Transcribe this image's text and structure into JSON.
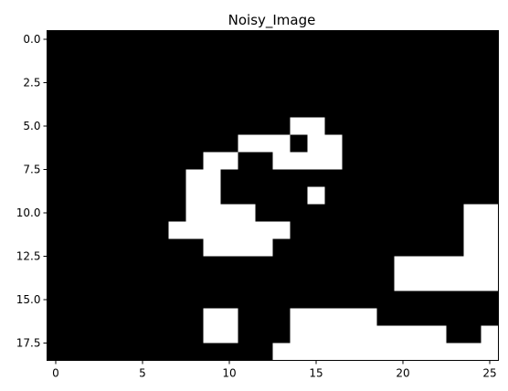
{
  "chart_data": {
    "type": "heatmap",
    "title": "Noisy_Image",
    "xlabel": "",
    "ylabel": "",
    "colormap": "gray",
    "colors": {
      "zero": "#000000",
      "one": "#ffffff"
    },
    "xlim": [
      -0.5,
      25.5
    ],
    "ylim": [
      18.5,
      -0.5
    ],
    "xticks": [
      0,
      5,
      10,
      15,
      20,
      25
    ],
    "yticks": [
      0.0,
      2.5,
      5.0,
      7.5,
      10.0,
      12.5,
      15.0,
      17.5
    ],
    "xtick_labels": [
      "0",
      "5",
      "10",
      "15",
      "20",
      "25"
    ],
    "ytick_labels": [
      "0.0",
      "2.5",
      "5.0",
      "7.5",
      "10.0",
      "12.5",
      "15.0",
      "17.5"
    ],
    "grid": false,
    "rows": 19,
    "cols": 26,
    "matrix": [
      [
        0,
        0,
        0,
        0,
        0,
        0,
        0,
        0,
        0,
        0,
        0,
        0,
        0,
        0,
        0,
        0,
        0,
        0,
        0,
        0,
        0,
        0,
        0,
        0,
        0,
        0
      ],
      [
        0,
        0,
        0,
        0,
        0,
        0,
        0,
        0,
        0,
        0,
        0,
        0,
        0,
        0,
        0,
        0,
        0,
        0,
        0,
        0,
        0,
        0,
        0,
        0,
        0,
        0
      ],
      [
        0,
        0,
        0,
        0,
        0,
        0,
        0,
        0,
        0,
        0,
        0,
        0,
        0,
        0,
        0,
        0,
        0,
        0,
        0,
        0,
        0,
        0,
        0,
        0,
        0,
        0
      ],
      [
        0,
        0,
        0,
        0,
        0,
        0,
        0,
        0,
        0,
        0,
        0,
        0,
        0,
        0,
        0,
        0,
        0,
        0,
        0,
        0,
        0,
        0,
        0,
        0,
        0,
        0
      ],
      [
        0,
        0,
        0,
        0,
        0,
        0,
        0,
        0,
        0,
        0,
        0,
        0,
        0,
        0,
        0,
        0,
        0,
        0,
        0,
        0,
        0,
        0,
        0,
        0,
        0,
        0
      ],
      [
        0,
        0,
        0,
        0,
        0,
        0,
        0,
        0,
        0,
        0,
        0,
        0,
        0,
        0,
        1,
        1,
        0,
        0,
        0,
        0,
        0,
        0,
        0,
        0,
        0,
        0
      ],
      [
        0,
        0,
        0,
        0,
        0,
        0,
        0,
        0,
        0,
        0,
        0,
        1,
        1,
        1,
        0,
        1,
        1,
        0,
        0,
        0,
        0,
        0,
        0,
        0,
        0,
        0
      ],
      [
        0,
        0,
        0,
        0,
        0,
        0,
        0,
        0,
        0,
        1,
        1,
        0,
        0,
        1,
        1,
        1,
        1,
        0,
        0,
        0,
        0,
        0,
        0,
        0,
        0,
        0
      ],
      [
        0,
        0,
        0,
        0,
        0,
        0,
        0,
        0,
        1,
        1,
        0,
        0,
        0,
        0,
        0,
        0,
        0,
        0,
        0,
        0,
        0,
        0,
        0,
        0,
        0,
        0
      ],
      [
        0,
        0,
        0,
        0,
        0,
        0,
        0,
        0,
        1,
        1,
        0,
        0,
        0,
        0,
        0,
        1,
        0,
        0,
        0,
        0,
        0,
        0,
        0,
        0,
        0,
        0
      ],
      [
        0,
        0,
        0,
        0,
        0,
        0,
        0,
        0,
        1,
        1,
        1,
        1,
        0,
        0,
        0,
        0,
        0,
        0,
        0,
        0,
        0,
        0,
        0,
        0,
        1,
        1
      ],
      [
        0,
        0,
        0,
        0,
        0,
        0,
        0,
        1,
        1,
        1,
        1,
        1,
        1,
        1,
        0,
        0,
        0,
        0,
        0,
        0,
        0,
        0,
        0,
        0,
        1,
        1
      ],
      [
        0,
        0,
        0,
        0,
        0,
        0,
        0,
        0,
        0,
        1,
        1,
        1,
        1,
        0,
        0,
        0,
        0,
        0,
        0,
        0,
        0,
        0,
        0,
        0,
        1,
        1
      ],
      [
        0,
        0,
        0,
        0,
        0,
        0,
        0,
        0,
        0,
        0,
        0,
        0,
        0,
        0,
        0,
        0,
        0,
        0,
        0,
        0,
        1,
        1,
        1,
        1,
        1,
        1
      ],
      [
        0,
        0,
        0,
        0,
        0,
        0,
        0,
        0,
        0,
        0,
        0,
        0,
        0,
        0,
        0,
        0,
        0,
        0,
        0,
        0,
        1,
        1,
        1,
        1,
        1,
        1
      ],
      [
        0,
        0,
        0,
        0,
        0,
        0,
        0,
        0,
        0,
        0,
        0,
        0,
        0,
        0,
        0,
        0,
        0,
        0,
        0,
        0,
        0,
        0,
        0,
        0,
        0,
        0
      ],
      [
        0,
        0,
        0,
        0,
        0,
        0,
        0,
        0,
        0,
        1,
        1,
        0,
        0,
        0,
        1,
        1,
        1,
        1,
        1,
        0,
        0,
        0,
        0,
        0,
        0,
        0
      ],
      [
        0,
        0,
        0,
        0,
        0,
        0,
        0,
        0,
        0,
        1,
        1,
        0,
        0,
        0,
        1,
        1,
        1,
        1,
        1,
        1,
        1,
        1,
        1,
        0,
        0,
        1
      ],
      [
        0,
        0,
        0,
        0,
        0,
        0,
        0,
        0,
        0,
        0,
        0,
        0,
        0,
        1,
        1,
        1,
        1,
        1,
        1,
        1,
        1,
        1,
        1,
        1,
        1,
        1
      ]
    ]
  }
}
